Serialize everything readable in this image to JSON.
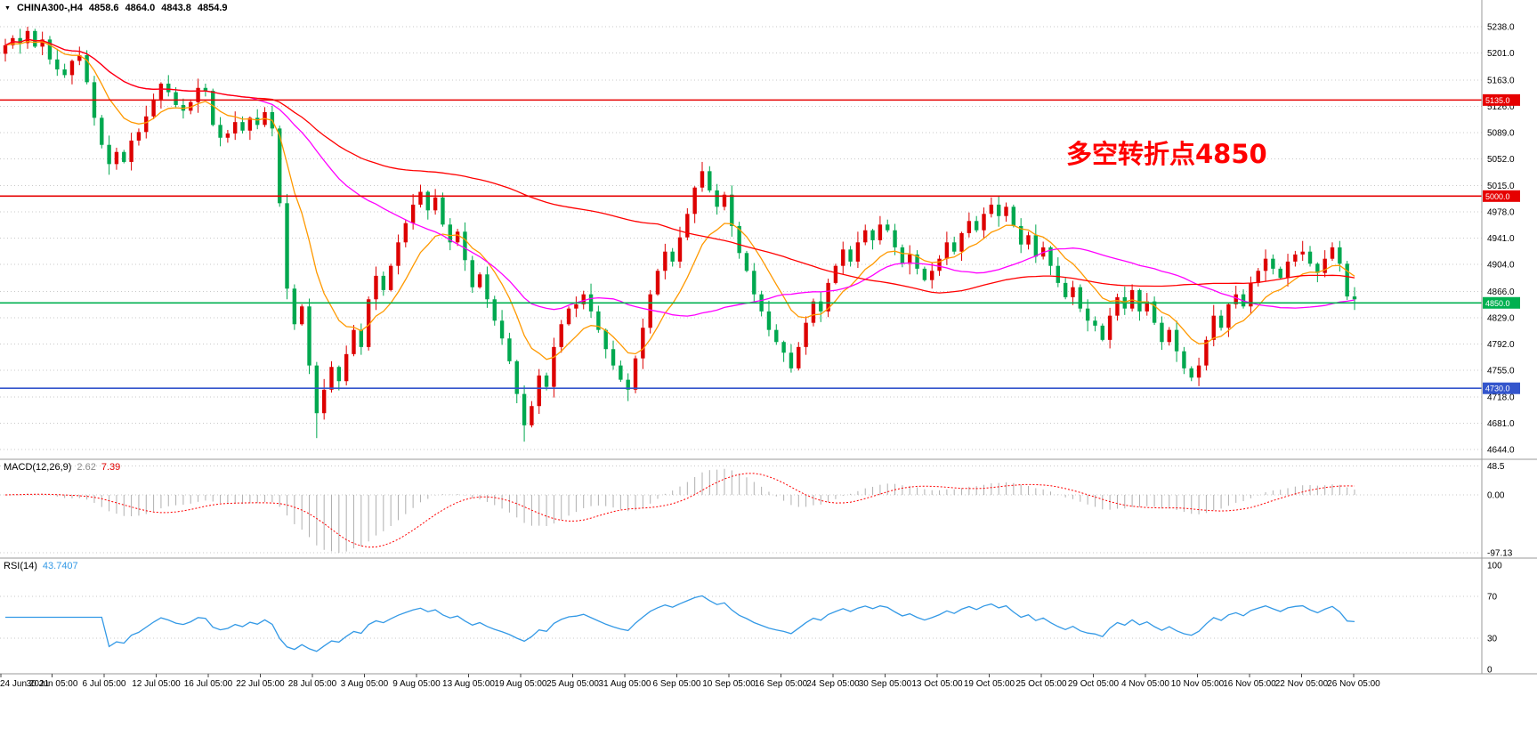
{
  "header": {
    "dropdown_icon": "▼",
    "symbol": "CHINA300-,H4",
    "open": "4858.6",
    "high": "4864.0",
    "low": "4843.8",
    "close": "4854.9"
  },
  "annotation": {
    "text": "多空转折点4850",
    "color": "#ff0000"
  },
  "indicators": {
    "macd": {
      "name": "MACD(12,26,9)",
      "value": "2.62",
      "signal": "7.39"
    },
    "rsi": {
      "name": "RSI(14)",
      "value": "43.7407"
    }
  },
  "colors": {
    "up_candle": "#dd0000",
    "down_candle": "#00a84f",
    "macd_histogram": "#b0b0b0",
    "macd_signal": "#ff0000",
    "rsi_line": "#3399e6",
    "annotation": "#ff0000"
  },
  "hlines": [
    {
      "value": 5135,
      "label": "5135.0",
      "color": "#e60000"
    },
    {
      "value": 5000,
      "label": "5000.0",
      "color": "#e60000"
    },
    {
      "value": 4850,
      "label": "4850.0",
      "color": "#00b050"
    },
    {
      "value": 4730,
      "label": "4730.0",
      "color": "#3355cc"
    }
  ],
  "time_axis": {
    "labels": [
      "24 Jun 2021",
      "30 Jun 05:00",
      "6 Jul 05:00",
      "12 Jul 05:00",
      "16 Jul 05:00",
      "22 Jul 05:00",
      "28 Jul 05:00",
      "3 Aug 05:00",
      "9 Aug 05:00",
      "13 Aug 05:00",
      "19 Aug 05:00",
      "25 Aug 05:00",
      "31 Aug 05:00",
      "6 Sep 05:00",
      "10 Sep 05:00",
      "16 Sep 05:00",
      "24 Sep 05:00",
      "30 Sep 05:00",
      "13 Oct 05:00",
      "19 Oct 05:00",
      "25 Oct 05:00",
      "29 Oct 05:00",
      "4 Nov 05:00",
      "10 Nov 05:00",
      "16 Nov 05:00",
      "22 Nov 05:00",
      "26 Nov 05:00"
    ]
  },
  "chart_data": [
    {
      "type": "candlestick",
      "title": "CHINA300-,H4",
      "ylim": [
        4644,
        5238
      ],
      "price_ticks": [
        5238,
        5201,
        5163,
        5126,
        5089,
        5052,
        5015,
        4978,
        4941,
        4904,
        4866,
        4829,
        4792,
        4755,
        4718,
        4681,
        4644
      ],
      "first_open": 5200,
      "closes": [
        5212,
        5222,
        5215,
        5232,
        5210,
        5220,
        5192,
        5178,
        5170,
        5190,
        5198,
        5160,
        5110,
        5072,
        5045,
        5062,
        5048,
        5078,
        5090,
        5112,
        5136,
        5158,
        5146,
        5128,
        5120,
        5132,
        5152,
        5148,
        5100,
        5082,
        5088,
        5104,
        5092,
        5110,
        5100,
        5118,
        5095,
        4990,
        4870,
        4820,
        4845,
        4762,
        4695,
        4728,
        4760,
        4740,
        4778,
        4812,
        4788,
        4855,
        4888,
        4868,
        4902,
        4935,
        4962,
        4988,
        5006,
        4980,
        4998,
        4960,
        4935,
        4950,
        4910,
        4872,
        4890,
        4855,
        4825,
        4800,
        4768,
        4722,
        4678,
        4705,
        4748,
        4732,
        4788,
        4820,
        4842,
        4848,
        4862,
        4838,
        4812,
        4785,
        4762,
        4742,
        4728,
        4772,
        4815,
        4862,
        4895,
        4922,
        4908,
        4942,
        4975,
        5012,
        5035,
        5008,
        4985,
        5002,
        4958,
        4920,
        4895,
        4862,
        4838,
        4812,
        4795,
        4780,
        4758,
        4788,
        4822,
        4852,
        4838,
        4878,
        4902,
        4925,
        4908,
        4935,
        4952,
        4938,
        4960,
        4952,
        4928,
        4905,
        4918,
        4898,
        4882,
        4895,
        4912,
        4935,
        4922,
        4948,
        4965,
        4952,
        4975,
        4988,
        4972,
        4985,
        4958,
        4932,
        4945,
        4915,
        4928,
        4902,
        4878,
        4858,
        4872,
        4842,
        4825,
        4818,
        4798,
        4832,
        4858,
        4842,
        4868,
        4838,
        4852,
        4822,
        4795,
        4812,
        4782,
        4758,
        4745,
        4762,
        4798,
        4832,
        4815,
        4848,
        4862,
        4845,
        4878,
        4895,
        4912,
        4898,
        4885,
        4908,
        4918,
        4922,
        4905,
        4892,
        4912,
        4928,
        4905,
        4859,
        4855
      ],
      "wick_pattern": [
        9,
        4,
        13,
        6,
        3,
        11,
        5,
        15,
        8,
        2,
        12,
        7
      ],
      "spike_highs": {
        "3": 5238,
        "56": 5016,
        "94": 5048,
        "133": 4998
      },
      "spike_lows": {
        "14": 5030,
        "42": 4660,
        "70": 4655,
        "84": 4712,
        "160": 4740
      },
      "moving_averages": [
        {
          "type": "ema",
          "period": 10,
          "color": "#ff9900"
        },
        {
          "type": "sma",
          "period": 34,
          "color": "#ff00ff"
        },
        {
          "type": "sma",
          "period": 89,
          "color": "#ff0000"
        }
      ]
    },
    {
      "type": "bar",
      "name": "MACD",
      "params": [
        12,
        26,
        9
      ],
      "current_values": [
        2.62,
        7.39
      ],
      "scale_ticks": [
        {
          "v": 48.5,
          "label": "48.5"
        },
        {
          "v": 0,
          "label": "0.00"
        },
        {
          "v": -97.13,
          "label": "-97.13"
        }
      ],
      "derived_from": "closes"
    },
    {
      "type": "line",
      "name": "RSI",
      "params": [
        14
      ],
      "current_value": 43.7407,
      "levels": [
        70,
        30
      ],
      "scale_ticks": [
        {
          "v": 100,
          "label": "100"
        },
        {
          "v": 70,
          "label": "70"
        },
        {
          "v": 30,
          "label": "30"
        },
        {
          "v": 0,
          "label": "0"
        }
      ],
      "derived_from": "closes"
    }
  ]
}
